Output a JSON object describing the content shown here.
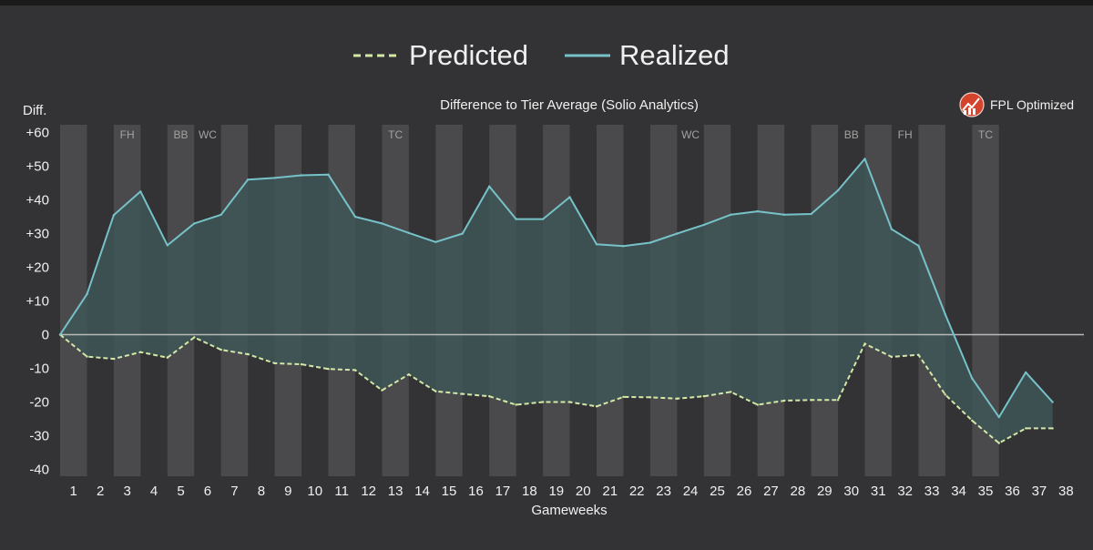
{
  "chart_data": {
    "type": "area",
    "title": "Difference to Tier Average (Solio Analytics)",
    "xlabel": "Gameweeks",
    "ylabel": "Diff.",
    "ylim": [
      -42,
      62
    ],
    "yticks": [
      60,
      50,
      40,
      30,
      20,
      10,
      0,
      -10,
      -20,
      -30,
      -40
    ],
    "ytick_labels": [
      "+60",
      "+50",
      "+40",
      "+30",
      "+20",
      "+10",
      "0",
      "-10",
      "-20",
      "-30",
      "-40"
    ],
    "x": [
      1,
      2,
      3,
      4,
      5,
      6,
      7,
      8,
      9,
      10,
      11,
      12,
      13,
      14,
      15,
      16,
      17,
      18,
      19,
      20,
      21,
      22,
      23,
      24,
      25,
      26,
      27,
      28,
      29,
      30,
      31,
      32,
      33,
      34,
      35,
      36,
      37,
      38
    ],
    "series": [
      {
        "name": "Predicted",
        "style": "dashed",
        "color": "#d4e8a6",
        "values": [
          0,
          -6.5,
          -7.2,
          -5.2,
          -6.8,
          -0.8,
          -4.5,
          -5.8,
          -8.5,
          -8.8,
          -10.2,
          -10.5,
          -16.5,
          -11.8,
          -16.8,
          -17.6,
          -18.3,
          -20.8,
          -20,
          -20,
          -21.3,
          -18.5,
          -18.6,
          -19,
          -18.3,
          -17,
          -20.8,
          -19.6,
          -19.4,
          -19.4,
          -2.7,
          -6.6,
          -6,
          -17.8,
          -25.5,
          -32.2,
          -27.8,
          -27.8
        ]
      },
      {
        "name": "Realized",
        "style": "solid",
        "color": "#76c2c8",
        "values": [
          0,
          12,
          35.5,
          42.5,
          26.5,
          33,
          35.6,
          46,
          46.5,
          47.3,
          47.5,
          35,
          33,
          30.2,
          27.5,
          30,
          44,
          34.3,
          34.3,
          40.8,
          26.8,
          26.3,
          27.3,
          30,
          32.6,
          35.6,
          36.6,
          35.6,
          35.8,
          42.8,
          52.2,
          31.3,
          26.4,
          6,
          -13,
          -24.5,
          -11.2,
          -20
        ]
      }
    ],
    "annotations": [
      {
        "x": 3,
        "label": "FH"
      },
      {
        "x": 5,
        "label": "BB"
      },
      {
        "x": 6,
        "label": "WC"
      },
      {
        "x": 13,
        "label": "TC"
      },
      {
        "x": 24,
        "label": "WC"
      },
      {
        "x": 30,
        "label": "BB"
      },
      {
        "x": 32,
        "label": "FH"
      },
      {
        "x": 35,
        "label": "TC"
      }
    ],
    "legend_position": "top-center",
    "grid": false,
    "alternating_column_bands": true,
    "colors": {
      "background": "#333335",
      "band": "#4a4a4c",
      "fill": "#3e5758",
      "zero_line": "#b9b9b9",
      "text": "#f0f0f0",
      "annotation_text": "#a2a2a2",
      "logo": "#d4432c"
    }
  },
  "branding": {
    "name": "FPL Optimized",
    "icon": "fpl-optimized-logo"
  }
}
